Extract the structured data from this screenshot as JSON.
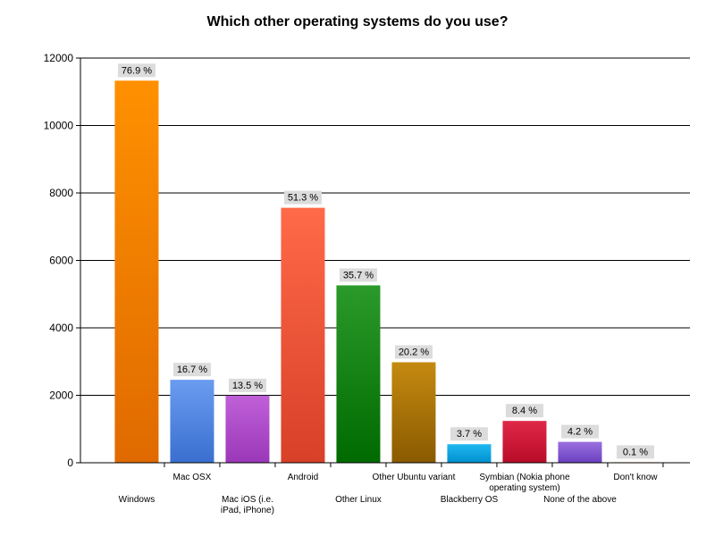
{
  "chart_data": {
    "type": "bar",
    "title": "Which other operating systems do you use?",
    "xlabel": "",
    "ylabel": "",
    "ylim": [
      0,
      12000
    ],
    "yticks": [
      0,
      2000,
      4000,
      6000,
      8000,
      10000,
      12000
    ],
    "grid": true,
    "categories": [
      "Windows",
      "Mac OSX",
      "Mac iOS (i.e. iPad, iPhone)",
      "Android",
      "Other Linux",
      "Other Ubuntu variant",
      "Blackberry OS",
      "Symbian (Nokia phone operating system)",
      "None of the above",
      "Don't know"
    ],
    "values": [
      11330,
      2460,
      1990,
      7560,
      5260,
      2980,
      550,
      1240,
      620,
      15
    ],
    "data_labels": [
      "76.9 %",
      "16.7 %",
      "13.5 %",
      "51.3 %",
      "35.7 %",
      "20.2 %",
      "3.7 %",
      "8.4 %",
      "4.2 %",
      "0.1 %"
    ],
    "colors": [
      [
        "#ff9000",
        "#e06a00"
      ],
      [
        "#6a9cf0",
        "#3a6fd0"
      ],
      [
        "#c060d8",
        "#9a38b8"
      ],
      [
        "#ff6a48",
        "#d84028"
      ],
      [
        "#2a9a2a",
        "#006a00"
      ],
      [
        "#c48a10",
        "#8a5a00"
      ],
      [
        "#20b8f0",
        "#0090d0"
      ],
      [
        "#e02848",
        "#b80c28"
      ],
      [
        "#9a70e0",
        "#6a40c0"
      ],
      [
        "#ff9000",
        "#e06a00"
      ]
    ]
  }
}
